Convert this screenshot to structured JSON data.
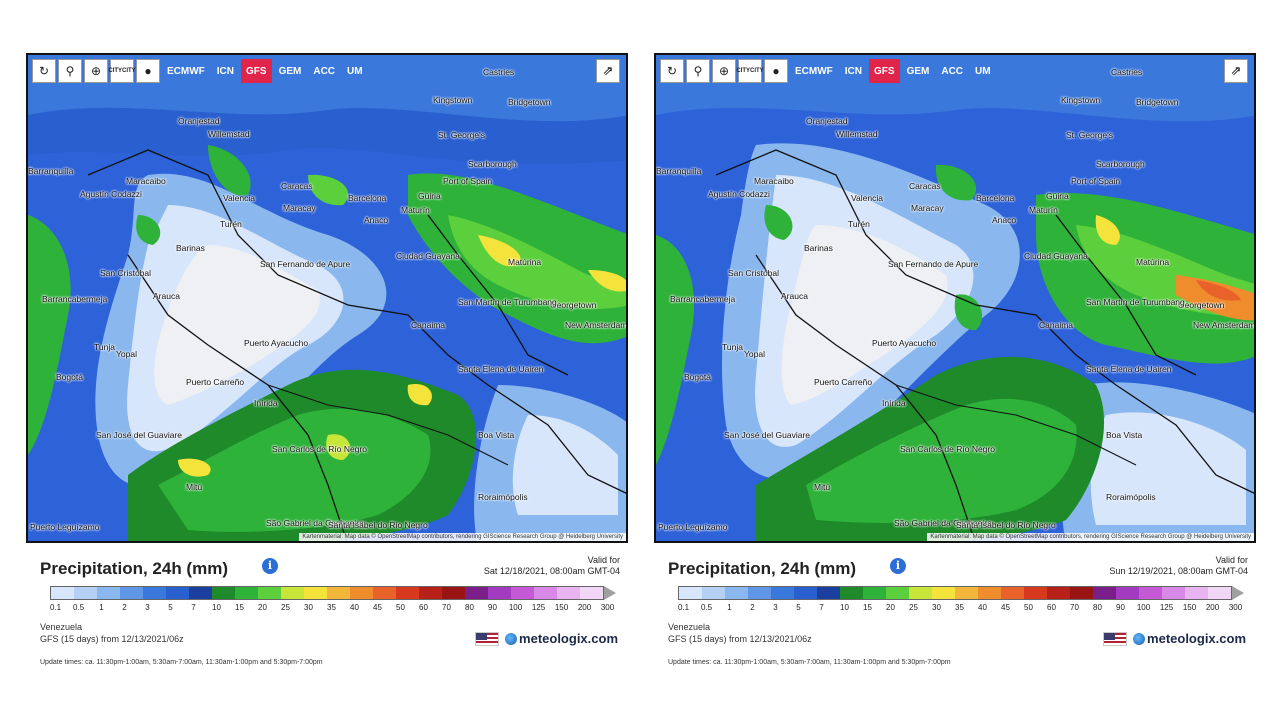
{
  "toolbar": {
    "refresh_icon": "↻",
    "pin_icon": "⚲",
    "zoom_icon": "⊕",
    "city_label_top": "CITY",
    "city_label_bottom": "CITY",
    "models": [
      "ECMWF",
      "ICN",
      "GFS",
      "GEM",
      "ACC",
      "UM"
    ],
    "active_model": "GFS",
    "share_icon": "⇗"
  },
  "attribution": "Kartenmaterial: Map data © OpenStreetMap contributors, rendering GIScience Research Group @ Heidelberg University",
  "cities": [
    "Castries",
    "Kingstown",
    "Bridgetown",
    "Oranjestad",
    "Willemstad",
    "St. George's",
    "Scarborough",
    "Barranquilla",
    "Maracaibo",
    "Agustín Codazzi",
    "Valencia",
    "Caracas",
    "Barcelona",
    "Port of Spain",
    "Maracay",
    "Güiria",
    "Turén",
    "Anaco",
    "Maturín",
    "Barinas",
    "Ciudad Guayana",
    "Matúrina",
    "San Fernando de Apure",
    "San Cristóbal",
    "Barrancabermeja",
    "Arauca",
    "Georgetown",
    "San Martín de Turumbang",
    "New Amsterdam",
    "Canaima",
    "Tunja",
    "Yopal",
    "Puerto Ayacucho",
    "Bogotá",
    "Puerto Carreño",
    "Santa Elena de Uairen",
    "Inírida",
    "Boa Vista",
    "San José del Guaviare",
    "San Carlos de Río Negro",
    "Mitú",
    "Roraimópolis",
    "São Gabriel da Cachoeira",
    "Santa Isabel do Rio Negro",
    "Puerto Leguízamo"
  ],
  "panels": [
    {
      "title": "Precipitation, 24h (mm)",
      "valid_label": "Valid for",
      "valid_time": "Sat 12/18/2021, 08:00am GMT-04",
      "region": "Venezuela",
      "run": "GFS (15 days) from 12/13/2021/06z",
      "update": "Update times: ca. 11:30pm-1:00am, 5:30am-7:00am, 11:30am-1:00pm and 5:30pm-7:00pm",
      "brand": "meteologix.com"
    },
    {
      "title": "Precipitation, 24h (mm)",
      "valid_label": "Valid for",
      "valid_time": "Sun 12/19/2021, 08:00am GMT-04",
      "region": "Venezuela",
      "run": "GFS (15 days) from 12/13/2021/06z",
      "update": "Update times: ca. 11:30pm-1:00am, 5:30am-7:00am, 11:30am-1:00pm and 5:30pm-7:00pm",
      "brand": "meteologix.com"
    }
  ],
  "colorbar": {
    "labels": [
      "0.1",
      "0.5",
      "1",
      "2",
      "3",
      "5",
      "7",
      "10",
      "15",
      "20",
      "25",
      "30",
      "35",
      "40",
      "45",
      "50",
      "60",
      "70",
      "80",
      "90",
      "100",
      "125",
      "150",
      "200",
      "300"
    ],
    "colors": [
      "#d8e6fb",
      "#b4d0f5",
      "#8ab8ee",
      "#5f97e6",
      "#3a78dc",
      "#2a5fcf",
      "#1b3f9e",
      "#1e8a2a",
      "#2fb23a",
      "#5ccf3c",
      "#c8e63a",
      "#f3e33a",
      "#f2b63a",
      "#ef8c2c",
      "#e8622a",
      "#d8381e",
      "#b8201a",
      "#9a1414",
      "#7a1e8a",
      "#a33bc1",
      "#c45ad6",
      "#d888e6",
      "#e8b4f0",
      "#f2d6f6"
    ]
  }
}
